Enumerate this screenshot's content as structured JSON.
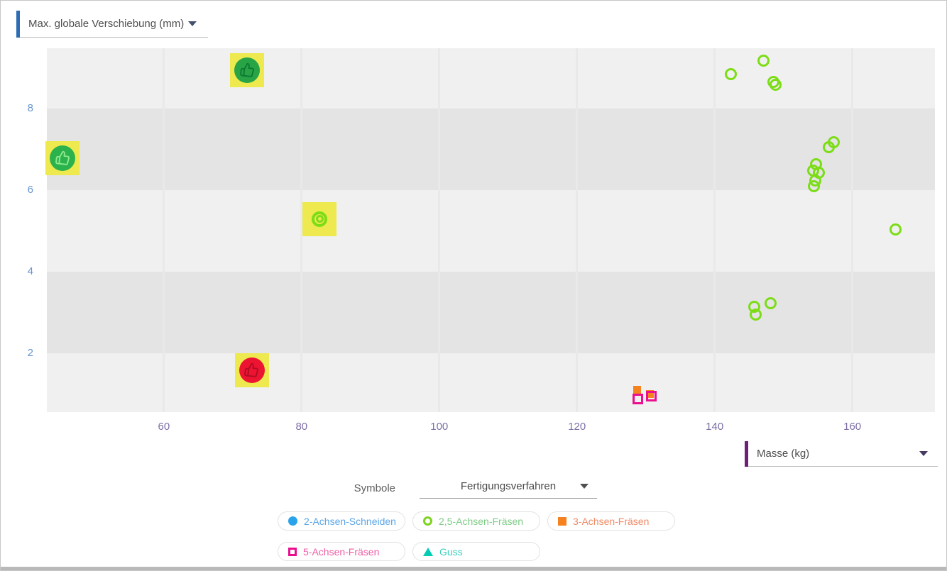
{
  "y_axis_selector": {
    "label": "Max. globale Verschiebung (mm)",
    "accent_color": "#2e6db4"
  },
  "x_axis_selector": {
    "label": "Masse (kg)",
    "accent_color": "#6d2077"
  },
  "symbols_control": {
    "label": "Symbole",
    "value": "Fertigungsverfahren"
  },
  "legend": {
    "items": [
      {
        "label": "2-Achsen-Schneiden",
        "marker": "circle-filled",
        "color": "#29a3ea",
        "text_color": "#5aa5e6"
      },
      {
        "label": "2,5-Achsen-Fräsen",
        "marker": "circle-open",
        "color": "#7ed321",
        "text_color": "#7fcb86"
      },
      {
        "label": "3-Achsen-Fräsen",
        "marker": "square-filled",
        "color": "#f6821f",
        "text_color": "#f08a66"
      },
      {
        "label": "5-Achsen-Fräsen",
        "marker": "square-open",
        "color": "#ec0d8e",
        "text_color": "#ee5ea6"
      },
      {
        "label": "Guss",
        "marker": "triangle-filled",
        "color": "#00cdb4",
        "text_color": "#3ecfbd"
      }
    ]
  },
  "chart_data": {
    "type": "scatter",
    "xlabel": "Masse (kg)",
    "ylabel": "Max. globale Verschiebung (mm)",
    "xlim": [
      43,
      172
    ],
    "ylim": [
      0.55,
      9.48
    ],
    "xticks": [
      60,
      80,
      100,
      120,
      140,
      160
    ],
    "yticks": [
      2,
      4,
      6,
      8
    ],
    "grid": "vertical-gridlines-with-alternating-horizontal-bands",
    "band_colors": [
      "#f0f0f0",
      "#e4e4e4"
    ],
    "series": [
      {
        "name": "2,5-Achsen-Fräsen",
        "marker": "circle-open",
        "color": "#7cdd17",
        "points": [
          [
            142.4,
            8.85
          ],
          [
            147.1,
            9.17
          ],
          [
            148.5,
            8.66
          ],
          [
            148.9,
            8.59
          ],
          [
            156.6,
            7.06
          ],
          [
            157.3,
            7.18
          ],
          [
            154.7,
            6.63
          ],
          [
            154.3,
            6.47
          ],
          [
            155.1,
            6.42
          ],
          [
            154.6,
            6.24
          ],
          [
            154.4,
            6.09
          ],
          [
            145.8,
            3.13
          ],
          [
            146.0,
            2.94
          ],
          [
            148.1,
            3.22
          ],
          [
            166.3,
            5.04
          ]
        ]
      },
      {
        "name": "3-Achsen-Fräsen",
        "marker": "square-filled",
        "color": "#f5831f",
        "points": [
          [
            128.7,
            1.1
          ],
          [
            130.6,
            1.0
          ]
        ]
      },
      {
        "name": "5-Achsen-Fräsen",
        "marker": "square-open",
        "color": "#eb0e8e",
        "points": [
          [
            128.8,
            0.88
          ],
          [
            130.8,
            0.94
          ]
        ]
      }
    ],
    "highlighted_points": [
      {
        "x": 72.1,
        "y": 8.94,
        "marker": "thumbs-up-circle",
        "color": "#28a447",
        "glyph_color": "#0e7a30",
        "highlight_color": "#ede94e"
      },
      {
        "x": 45.3,
        "y": 6.78,
        "marker": "thumbs-up-circle",
        "color": "#2bb24c",
        "glyph_color": "#8ce98c",
        "highlight_color": "#ede94e"
      },
      {
        "x": 82.6,
        "y": 5.29,
        "marker": "double-ring",
        "color": "#7cdd17",
        "highlight_color": "#ede94e"
      },
      {
        "x": 72.8,
        "y": 1.58,
        "marker": "thumbs-up-circle",
        "color": "#ec1431",
        "glyph_color": "#b00d24",
        "highlight_color": "#ede94e"
      }
    ]
  }
}
